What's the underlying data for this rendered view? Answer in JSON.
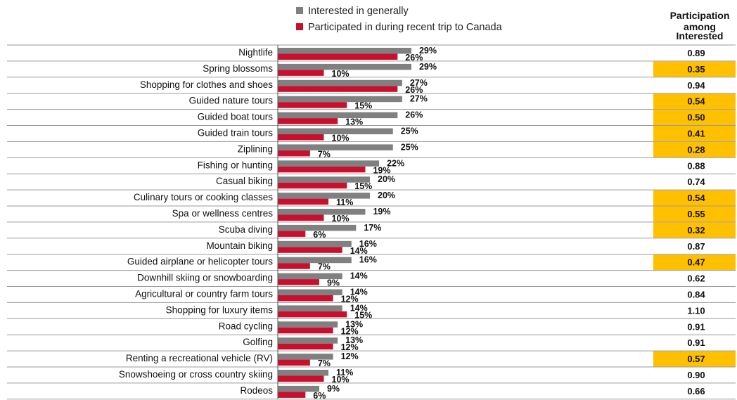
{
  "chart_data": {
    "type": "bar",
    "orientation": "horizontal",
    "legend_position": "top",
    "colors": {
      "interested": "#808080",
      "participated": "#C8102E",
      "highlight": "#FFC000"
    },
    "series": [
      {
        "name": "Interested in generally",
        "color": "#808080",
        "values": [
          29,
          29,
          27,
          27,
          26,
          25,
          25,
          22,
          20,
          20,
          19,
          17,
          16,
          16,
          14,
          14,
          14,
          13,
          13,
          12,
          11,
          9
        ]
      },
      {
        "name": "Participated in during recent trip to Canada",
        "color": "#C8102E",
        "values": [
          26,
          10,
          26,
          15,
          13,
          10,
          7,
          19,
          15,
          11,
          10,
          6,
          14,
          7,
          9,
          12,
          15,
          12,
          12,
          7,
          10,
          6
        ]
      }
    ],
    "categories": [
      "Nightlife",
      "Spring blossoms",
      "Shopping for clothes and shoes",
      "Guided nature tours",
      "Guided boat tours",
      "Guided train tours",
      "Ziplining",
      "Fishing or hunting",
      "Casual biking",
      "Culinary tours or cooking classes",
      "Spa or wellness centres",
      "Scuba diving",
      "Mountain biking",
      "Guided airplane or helicopter tours",
      "Downhill skiing or snowboarding",
      "Agricultural or country farm tours",
      "Shopping for luxury items",
      "Road cycling",
      "Golfing",
      "Renting a recreational vehicle (RV)",
      "Snowshoeing or cross country skiing",
      "Rodeos"
    ],
    "value_suffix": "%",
    "ratio_column": {
      "header_lines": [
        "Participation",
        "among",
        "Interested"
      ],
      "values": [
        "0.89",
        "0.35",
        "0.94",
        "0.54",
        "0.50",
        "0.41",
        "0.28",
        "0.88",
        "0.74",
        "0.54",
        "0.55",
        "0.32",
        "0.87",
        "0.47",
        "0.62",
        "0.84",
        "1.10",
        "0.91",
        "0.91",
        "0.57",
        "0.90",
        "0.66"
      ],
      "highlighted": [
        false,
        true,
        false,
        true,
        true,
        true,
        true,
        false,
        false,
        true,
        true,
        true,
        false,
        true,
        false,
        false,
        false,
        false,
        false,
        true,
        false,
        false
      ]
    }
  }
}
